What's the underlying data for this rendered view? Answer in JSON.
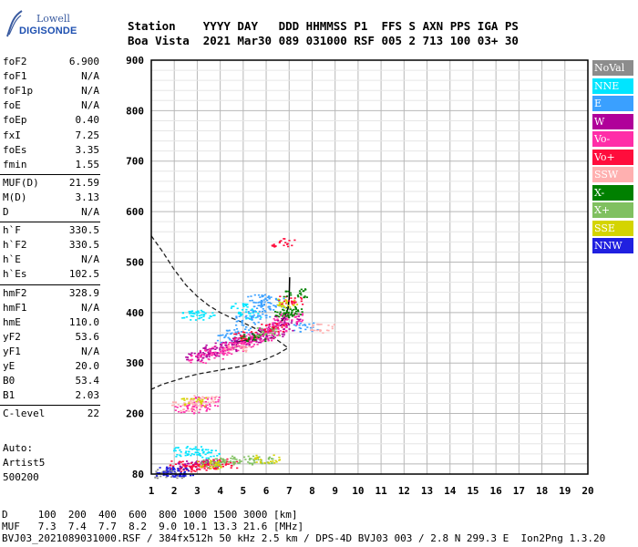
{
  "logo": {
    "line1": "Lowell",
    "line2": "DIGISONDE"
  },
  "header": {
    "line1": "Station    YYYY DAY   DDD HHMMSS P1  FFS S AXN PPS IGA PS",
    "line2": "Boa Vista  2021 Mar30 089 031000 RSF 005 2 713 100 03+ 30"
  },
  "params": [
    {
      "label": "foF2",
      "value": "6.900"
    },
    {
      "label": "foF1",
      "value": "N/A"
    },
    {
      "label": "foF1p",
      "value": "N/A"
    },
    {
      "label": "foE",
      "value": "N/A"
    },
    {
      "label": "foEp",
      "value": "0.40"
    },
    {
      "label": "fxI",
      "value": "7.25"
    },
    {
      "label": "foEs",
      "value": "3.35"
    },
    {
      "label": "fmin",
      "value": "1.55"
    },
    {
      "label": "MUF(D)",
      "value": "21.59"
    },
    {
      "label": "M(D)",
      "value": "3.13"
    },
    {
      "label": "D",
      "value": "N/A"
    },
    {
      "label": "h`F",
      "value": "330.5"
    },
    {
      "label": "h`F2",
      "value": "330.5"
    },
    {
      "label": "h`E",
      "value": "N/A"
    },
    {
      "label": "h`Es",
      "value": "102.5"
    },
    {
      "label": "hmF2",
      "value": "328.9"
    },
    {
      "label": "hmF1",
      "value": "N/A"
    },
    {
      "label": "hmE",
      "value": "110.0"
    },
    {
      "label": "yF2",
      "value": "53.6"
    },
    {
      "label": "yF1",
      "value": "N/A"
    },
    {
      "label": "yE",
      "value": "20.0"
    },
    {
      "label": "B0",
      "value": "53.4"
    },
    {
      "label": "B1",
      "value": "2.03"
    },
    {
      "label": "C-level",
      "value": "22"
    }
  ],
  "auto": {
    "line1": "Auto:",
    "line2": "Artist5",
    "line3": "500200"
  },
  "legend": [
    {
      "label": "NoVal",
      "color": "#8c8c8c"
    },
    {
      "label": "NNE",
      "color": "#00e5ff"
    },
    {
      "label": "E",
      "color": "#3aa0ff"
    },
    {
      "label": "W",
      "color": "#b0009a"
    },
    {
      "label": "Vo-",
      "color": "#ff2ea8"
    },
    {
      "label": "Vo+",
      "color": "#ff0d3c"
    },
    {
      "label": "SSW",
      "color": "#ffb0b0"
    },
    {
      "label": "X-",
      "color": "#008000"
    },
    {
      "label": "X+",
      "color": "#80c060"
    },
    {
      "label": "SSE",
      "color": "#d4d400"
    },
    {
      "label": "NNW",
      "color": "#2020e0"
    }
  ],
  "footer": {
    "line1": "D     100  200  400  600  800 1000 1500 3000 [km]",
    "line2": "MUF   7.3  7.4  7.7  8.2  9.0 10.1 13.3 21.6 [MHz]",
    "line3": "BVJ03_2021089031000.RSF / 384fx512h 50 kHz 2.5 km / DPS-4D BVJ03 003 / 2.8 N 299.3 E  Ion2Png 1.3.20"
  },
  "chart_data": {
    "type": "scatter",
    "xlim": [
      1,
      20
    ],
    "ylim": [
      80,
      900
    ],
    "x_ticks": [
      1,
      2,
      3,
      4,
      5,
      6,
      7,
      8,
      9,
      10,
      11,
      12,
      13,
      14,
      15,
      16,
      17,
      18,
      19,
      20
    ],
    "y_ticks": [
      80,
      200,
      300,
      400,
      500,
      600,
      700,
      800,
      900
    ],
    "grid": true,
    "series": [
      {
        "name": "NoVal",
        "points": [
          [
            1.6,
            82
          ],
          [
            1.9,
            82
          ]
        ]
      },
      {
        "name": "NNE",
        "points": [
          [
            2.5,
            125
          ],
          [
            3.0,
            128
          ],
          [
            3.4,
            122
          ],
          [
            2.8,
            395
          ],
          [
            3.2,
            398
          ],
          [
            5.0,
            410
          ],
          [
            5.3,
            395
          ]
        ]
      },
      {
        "name": "E",
        "points": [
          [
            4.8,
            365
          ],
          [
            5.2,
            385
          ],
          [
            5.6,
            400
          ],
          [
            5.9,
            415
          ],
          [
            6.2,
            420
          ],
          [
            4.3,
            350
          ],
          [
            5.7,
            430
          ],
          [
            7.7,
            372
          ]
        ]
      },
      {
        "name": "W",
        "points": [
          [
            3.0,
            315
          ],
          [
            3.4,
            322
          ],
          [
            3.8,
            328
          ],
          [
            4.2,
            333
          ],
          [
            4.6,
            338
          ],
          [
            5.0,
            343
          ],
          [
            5.4,
            350
          ],
          [
            5.8,
            355
          ],
          [
            6.2,
            362
          ],
          [
            6.6,
            372
          ],
          [
            6.9,
            385
          ],
          [
            2.6,
            100
          ],
          [
            3.3,
            102
          ]
        ]
      },
      {
        "name": "Vo-",
        "points": [
          [
            3.1,
            310
          ],
          [
            3.6,
            318
          ],
          [
            4.0,
            326
          ],
          [
            4.5,
            333
          ],
          [
            4.9,
            340
          ],
          [
            5.3,
            347
          ],
          [
            5.7,
            353
          ],
          [
            6.1,
            360
          ],
          [
            6.5,
            370
          ],
          [
            6.8,
            380
          ],
          [
            7.0,
            390
          ],
          [
            2.5,
            210
          ],
          [
            3.0,
            215
          ],
          [
            3.4,
            225
          ]
        ]
      },
      {
        "name": "Vo+",
        "points": [
          [
            2.2,
            98
          ],
          [
            2.7,
            95
          ],
          [
            3.2,
            98
          ],
          [
            3.7,
            100
          ],
          [
            4.2,
            102
          ],
          [
            5.0,
            355
          ],
          [
            6.3,
            372
          ],
          [
            7.05,
            425
          ],
          [
            6.7,
            540
          ]
        ]
      },
      {
        "name": "SSW",
        "points": [
          [
            2.4,
            215
          ],
          [
            2.9,
            222
          ],
          [
            3.3,
            230
          ],
          [
            8.4,
            370
          ],
          [
            4.7,
            330
          ]
        ]
      },
      {
        "name": "X-",
        "points": [
          [
            7.1,
            405
          ],
          [
            7.2,
            440
          ],
          [
            6.9,
            400
          ],
          [
            5.4,
            352
          ]
        ]
      },
      {
        "name": "X+",
        "points": [
          [
            3.7,
            103
          ],
          [
            4.3,
            105
          ],
          [
            4.9,
            108
          ],
          [
            5.7,
            108
          ],
          [
            6.1,
            362
          ]
        ]
      },
      {
        "name": "SSE",
        "points": [
          [
            3.5,
            100
          ],
          [
            2.8,
            225
          ],
          [
            7.0,
            420
          ],
          [
            6.0,
            110
          ]
        ]
      },
      {
        "name": "NNW",
        "points": [
          [
            1.7,
            85
          ],
          [
            2.0,
            87
          ],
          [
            2.3,
            85
          ]
        ]
      }
    ],
    "profile_dashed": [
      [
        1,
        552
      ],
      [
        1.5,
        520
      ],
      [
        2,
        485
      ],
      [
        2.5,
        455
      ],
      [
        3,
        432
      ],
      [
        3.5,
        414
      ],
      [
        4,
        400
      ],
      [
        4.5,
        389
      ],
      [
        5,
        380
      ],
      [
        5.5,
        369
      ],
      [
        6,
        355
      ],
      [
        6.5,
        345
      ],
      [
        6.95,
        330
      ],
      [
        6.5,
        318
      ],
      [
        6,
        308
      ],
      [
        5.5,
        300
      ],
      [
        5,
        294
      ],
      [
        4.5,
        290
      ],
      [
        4,
        286
      ],
      [
        3.5,
        282
      ],
      [
        3,
        278
      ],
      [
        2.5,
        272
      ],
      [
        2,
        265
      ],
      [
        1.5,
        258
      ],
      [
        1,
        248
      ]
    ],
    "profile_solid": [
      [
        4.5,
        340
      ],
      [
        5,
        344
      ],
      [
        5.5,
        350
      ],
      [
        6,
        360
      ],
      [
        6.5,
        375
      ],
      [
        6.8,
        390
      ],
      [
        6.95,
        408
      ],
      [
        7.0,
        428
      ],
      [
        7.02,
        470
      ]
    ]
  }
}
